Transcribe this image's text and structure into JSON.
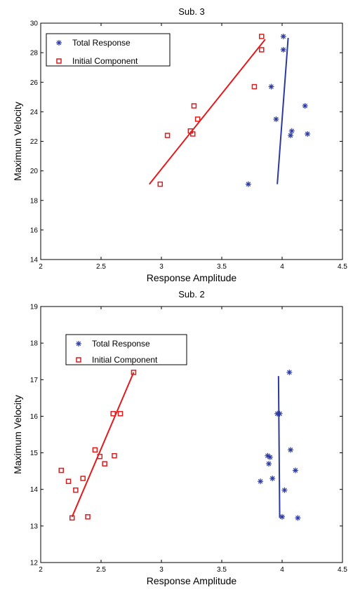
{
  "chart_data": [
    {
      "type": "scatter",
      "title": "Sub. 3",
      "xlabel": "Response Amplitude",
      "ylabel": "Maximum Velocity",
      "xlim": [
        2,
        4.5
      ],
      "ylim": [
        14,
        30
      ],
      "xticks": [
        "2",
        "2.5",
        "3",
        "3.5",
        "4",
        "4.5"
      ],
      "yticks": [
        "14",
        "16",
        "18",
        "20",
        "22",
        "24",
        "26",
        "28",
        "30"
      ],
      "legend_position": "top-left",
      "series": [
        {
          "name": "Total Response",
          "marker": "asterisk",
          "color": "#2b3aa0",
          "points": [
            [
              4.01,
              29.1
            ],
            [
              4.01,
              28.2
            ],
            [
              3.91,
              25.7
            ],
            [
              4.19,
              24.4
            ],
            [
              3.95,
              23.5
            ],
            [
              4.08,
              22.7
            ],
            [
              4.07,
              22.4
            ],
            [
              4.21,
              22.5
            ],
            [
              3.72,
              19.1
            ]
          ],
          "fit_line": [
            [
              3.96,
              19.1
            ],
            [
              4.05,
              29.0
            ]
          ]
        },
        {
          "name": "Initial Component",
          "marker": "square",
          "color": "#e31a1c",
          "points": [
            [
              3.83,
              29.1
            ],
            [
              3.83,
              28.2
            ],
            [
              3.77,
              25.7
            ],
            [
              3.27,
              24.4
            ],
            [
              3.3,
              23.5
            ],
            [
              3.24,
              22.7
            ],
            [
              3.26,
              22.5
            ],
            [
              3.05,
              22.4
            ],
            [
              2.99,
              19.1
            ]
          ],
          "fit_line": [
            [
              2.9,
              19.1
            ],
            [
              3.86,
              28.9
            ]
          ]
        }
      ]
    },
    {
      "type": "scatter",
      "title": "Sub. 2",
      "xlabel": "Response Amplitude",
      "ylabel": "Maximum Velocity",
      "xlim": [
        2,
        4.5
      ],
      "ylim": [
        12,
        19
      ],
      "xticks": [
        "2",
        "2.5",
        "3",
        "3.5",
        "4",
        "4.5"
      ],
      "yticks": [
        "12",
        "13",
        "14",
        "15",
        "16",
        "17",
        "18",
        "19"
      ],
      "legend_position": "top-left",
      "series": [
        {
          "name": "Total Response",
          "marker": "asterisk",
          "color": "#2b3aa0",
          "points": [
            [
              4.06,
              17.2
            ],
            [
              3.96,
              16.07
            ],
            [
              3.98,
              16.07
            ],
            [
              4.07,
              15.08
            ],
            [
              3.88,
              14.92
            ],
            [
              3.9,
              14.88
            ],
            [
              3.89,
              14.7
            ],
            [
              4.11,
              14.52
            ],
            [
              3.92,
              14.3
            ],
            [
              3.82,
              14.22
            ],
            [
              4.02,
              13.98
            ],
            [
              4.0,
              13.25
            ],
            [
              4.13,
              13.22
            ]
          ],
          "fit_line": [
            [
              3.97,
              17.1
            ],
            [
              3.98,
              13.22
            ]
          ]
        },
        {
          "name": "Initial Component",
          "marker": "square",
          "color": "#e31a1c",
          "points": [
            [
              2.77,
              17.2
            ],
            [
              2.6,
              16.07
            ],
            [
              2.66,
              16.07
            ],
            [
              2.45,
              15.08
            ],
            [
              2.49,
              14.9
            ],
            [
              2.61,
              14.92
            ],
            [
              2.53,
              14.7
            ],
            [
              2.17,
              14.52
            ],
            [
              2.35,
              14.3
            ],
            [
              2.23,
              14.22
            ],
            [
              2.29,
              13.98
            ],
            [
              2.26,
              13.22
            ],
            [
              2.39,
              13.25
            ]
          ],
          "fit_line": [
            [
              2.26,
              13.25
            ],
            [
              2.77,
              17.2
            ]
          ]
        }
      ]
    }
  ]
}
